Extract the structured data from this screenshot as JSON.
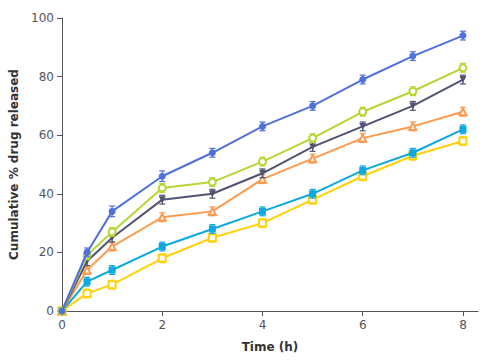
{
  "chart_data": {
    "type": "line",
    "xlabel": "Time (h)",
    "ylabel": "Cumulative % drug released",
    "x": [
      0,
      0.5,
      1,
      2,
      3,
      4,
      5,
      6,
      7,
      8
    ],
    "series": [
      {
        "marker": "circle",
        "values": [
          0,
          20,
          34,
          46,
          54,
          63,
          70,
          79,
          87,
          94
        ],
        "errors": [
          0,
          1.5,
          1.8,
          1.8,
          1.5,
          1.5,
          1.5,
          1.5,
          1.5,
          1.5
        ]
      },
      {
        "marker": "open-circle",
        "values": [
          0,
          19,
          27,
          42,
          44,
          51,
          59,
          68,
          75,
          83
        ],
        "errors": [
          0,
          1.5,
          1.5,
          1.5,
          1.5,
          1.5,
          1.5,
          1.5,
          1.5,
          1.5
        ]
      },
      {
        "marker": "down-triangle",
        "values": [
          0,
          17,
          25,
          38,
          40,
          47,
          56,
          63,
          70,
          79
        ],
        "errors": [
          0,
          1.5,
          1.5,
          1.5,
          1.5,
          1.5,
          1.5,
          1.5,
          1.5,
          1.5
        ]
      },
      {
        "marker": "open-triangle",
        "values": [
          0,
          14,
          22,
          32,
          34,
          45,
          52,
          59,
          63,
          68
        ],
        "errors": [
          0,
          1.5,
          1.5,
          1.5,
          1.5,
          1.5,
          1.5,
          1.5,
          1.5,
          1.5
        ]
      },
      {
        "marker": "square",
        "values": [
          0,
          10,
          14,
          22,
          28,
          34,
          40,
          48,
          54,
          62
        ],
        "errors": [
          0,
          1.5,
          1.5,
          1.5,
          1.5,
          1.5,
          1.5,
          1.5,
          1.5,
          1.5
        ]
      },
      {
        "marker": "open-square",
        "values": [
          0,
          6,
          9,
          18,
          25,
          30,
          38,
          46,
          53,
          58
        ],
        "errors": [
          0,
          1.5,
          1.5,
          1.5,
          1.5,
          1.5,
          1.5,
          1.5,
          1.5,
          1.5
        ]
      }
    ],
    "xlim": [
      0,
      8.3
    ],
    "ylim": [
      0,
      100
    ],
    "xticks": [
      0,
      2,
      4,
      6,
      8
    ],
    "yticks": [
      0,
      20,
      40,
      60,
      80,
      100
    ],
    "grid": false
  }
}
